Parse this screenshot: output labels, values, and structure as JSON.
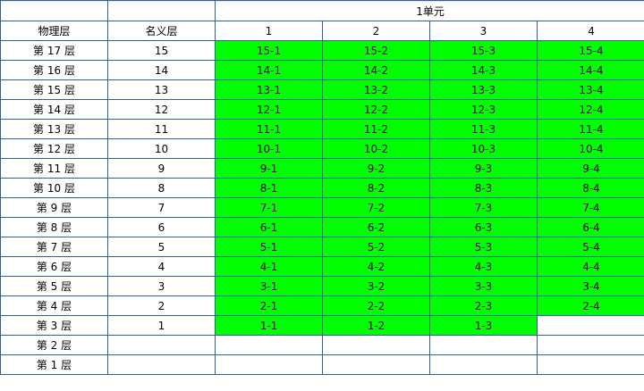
{
  "header": {
    "unit_label": "1单元",
    "physical_floor_label": "物理层",
    "nominal_floor_label": "名义层",
    "columns": [
      "1",
      "2",
      "3",
      "4"
    ]
  },
  "colors": {
    "occupied": "#00ff00",
    "empty": "#ffffff",
    "border": "#2f5f9e"
  },
  "rows": [
    {
      "physical": "第 17 层",
      "nominal": "15",
      "rooms": [
        "15-1",
        "15-2",
        "15-3",
        "15-4"
      ]
    },
    {
      "physical": "第 16 层",
      "nominal": "14",
      "rooms": [
        "14-1",
        "14-2",
        "14-3",
        "14-4"
      ]
    },
    {
      "physical": "第 15 层",
      "nominal": "13",
      "rooms": [
        "13-1",
        "13-2",
        "13-3",
        "13-4"
      ]
    },
    {
      "physical": "第 14 层",
      "nominal": "12",
      "rooms": [
        "12-1",
        "12-2",
        "12-3",
        "12-4"
      ]
    },
    {
      "physical": "第 13 层",
      "nominal": "11",
      "rooms": [
        "11-1",
        "11-2",
        "11-3",
        "11-4"
      ]
    },
    {
      "physical": "第 12 层",
      "nominal": "10",
      "rooms": [
        "10-1",
        "10-2",
        "10-3",
        "10-4"
      ]
    },
    {
      "physical": "第 11 层",
      "nominal": "9",
      "rooms": [
        "9-1",
        "9-2",
        "9-3",
        "9-4"
      ]
    },
    {
      "physical": "第 10 层",
      "nominal": "8",
      "rooms": [
        "8-1",
        "8-2",
        "8-3",
        "8-4"
      ]
    },
    {
      "physical": "第 9 层",
      "nominal": "7",
      "rooms": [
        "7-1",
        "7-2",
        "7-3",
        "7-4"
      ]
    },
    {
      "physical": "第 8 层",
      "nominal": "6",
      "rooms": [
        "6-1",
        "6-2",
        "6-3",
        "6-4"
      ]
    },
    {
      "physical": "第 7 层",
      "nominal": "5",
      "rooms": [
        "5-1",
        "5-2",
        "5-3",
        "5-4"
      ]
    },
    {
      "physical": "第 6 层",
      "nominal": "4",
      "rooms": [
        "4-1",
        "4-2",
        "4-3",
        "4-4"
      ]
    },
    {
      "physical": "第 5 层",
      "nominal": "3",
      "rooms": [
        "3-1",
        "3-2",
        "3-3",
        "3-4"
      ]
    },
    {
      "physical": "第 4 层",
      "nominal": "2",
      "rooms": [
        "2-1",
        "2-2",
        "2-3",
        "2-4"
      ]
    },
    {
      "physical": "第 3 层",
      "nominal": "1",
      "rooms": [
        "1-1",
        "1-2",
        "1-3",
        ""
      ]
    },
    {
      "physical": "第 2 层",
      "nominal": "",
      "rooms": [
        "",
        "",
        "",
        ""
      ]
    },
    {
      "physical": "第 1 层",
      "nominal": "",
      "rooms": [
        "",
        "",
        "",
        ""
      ]
    }
  ]
}
